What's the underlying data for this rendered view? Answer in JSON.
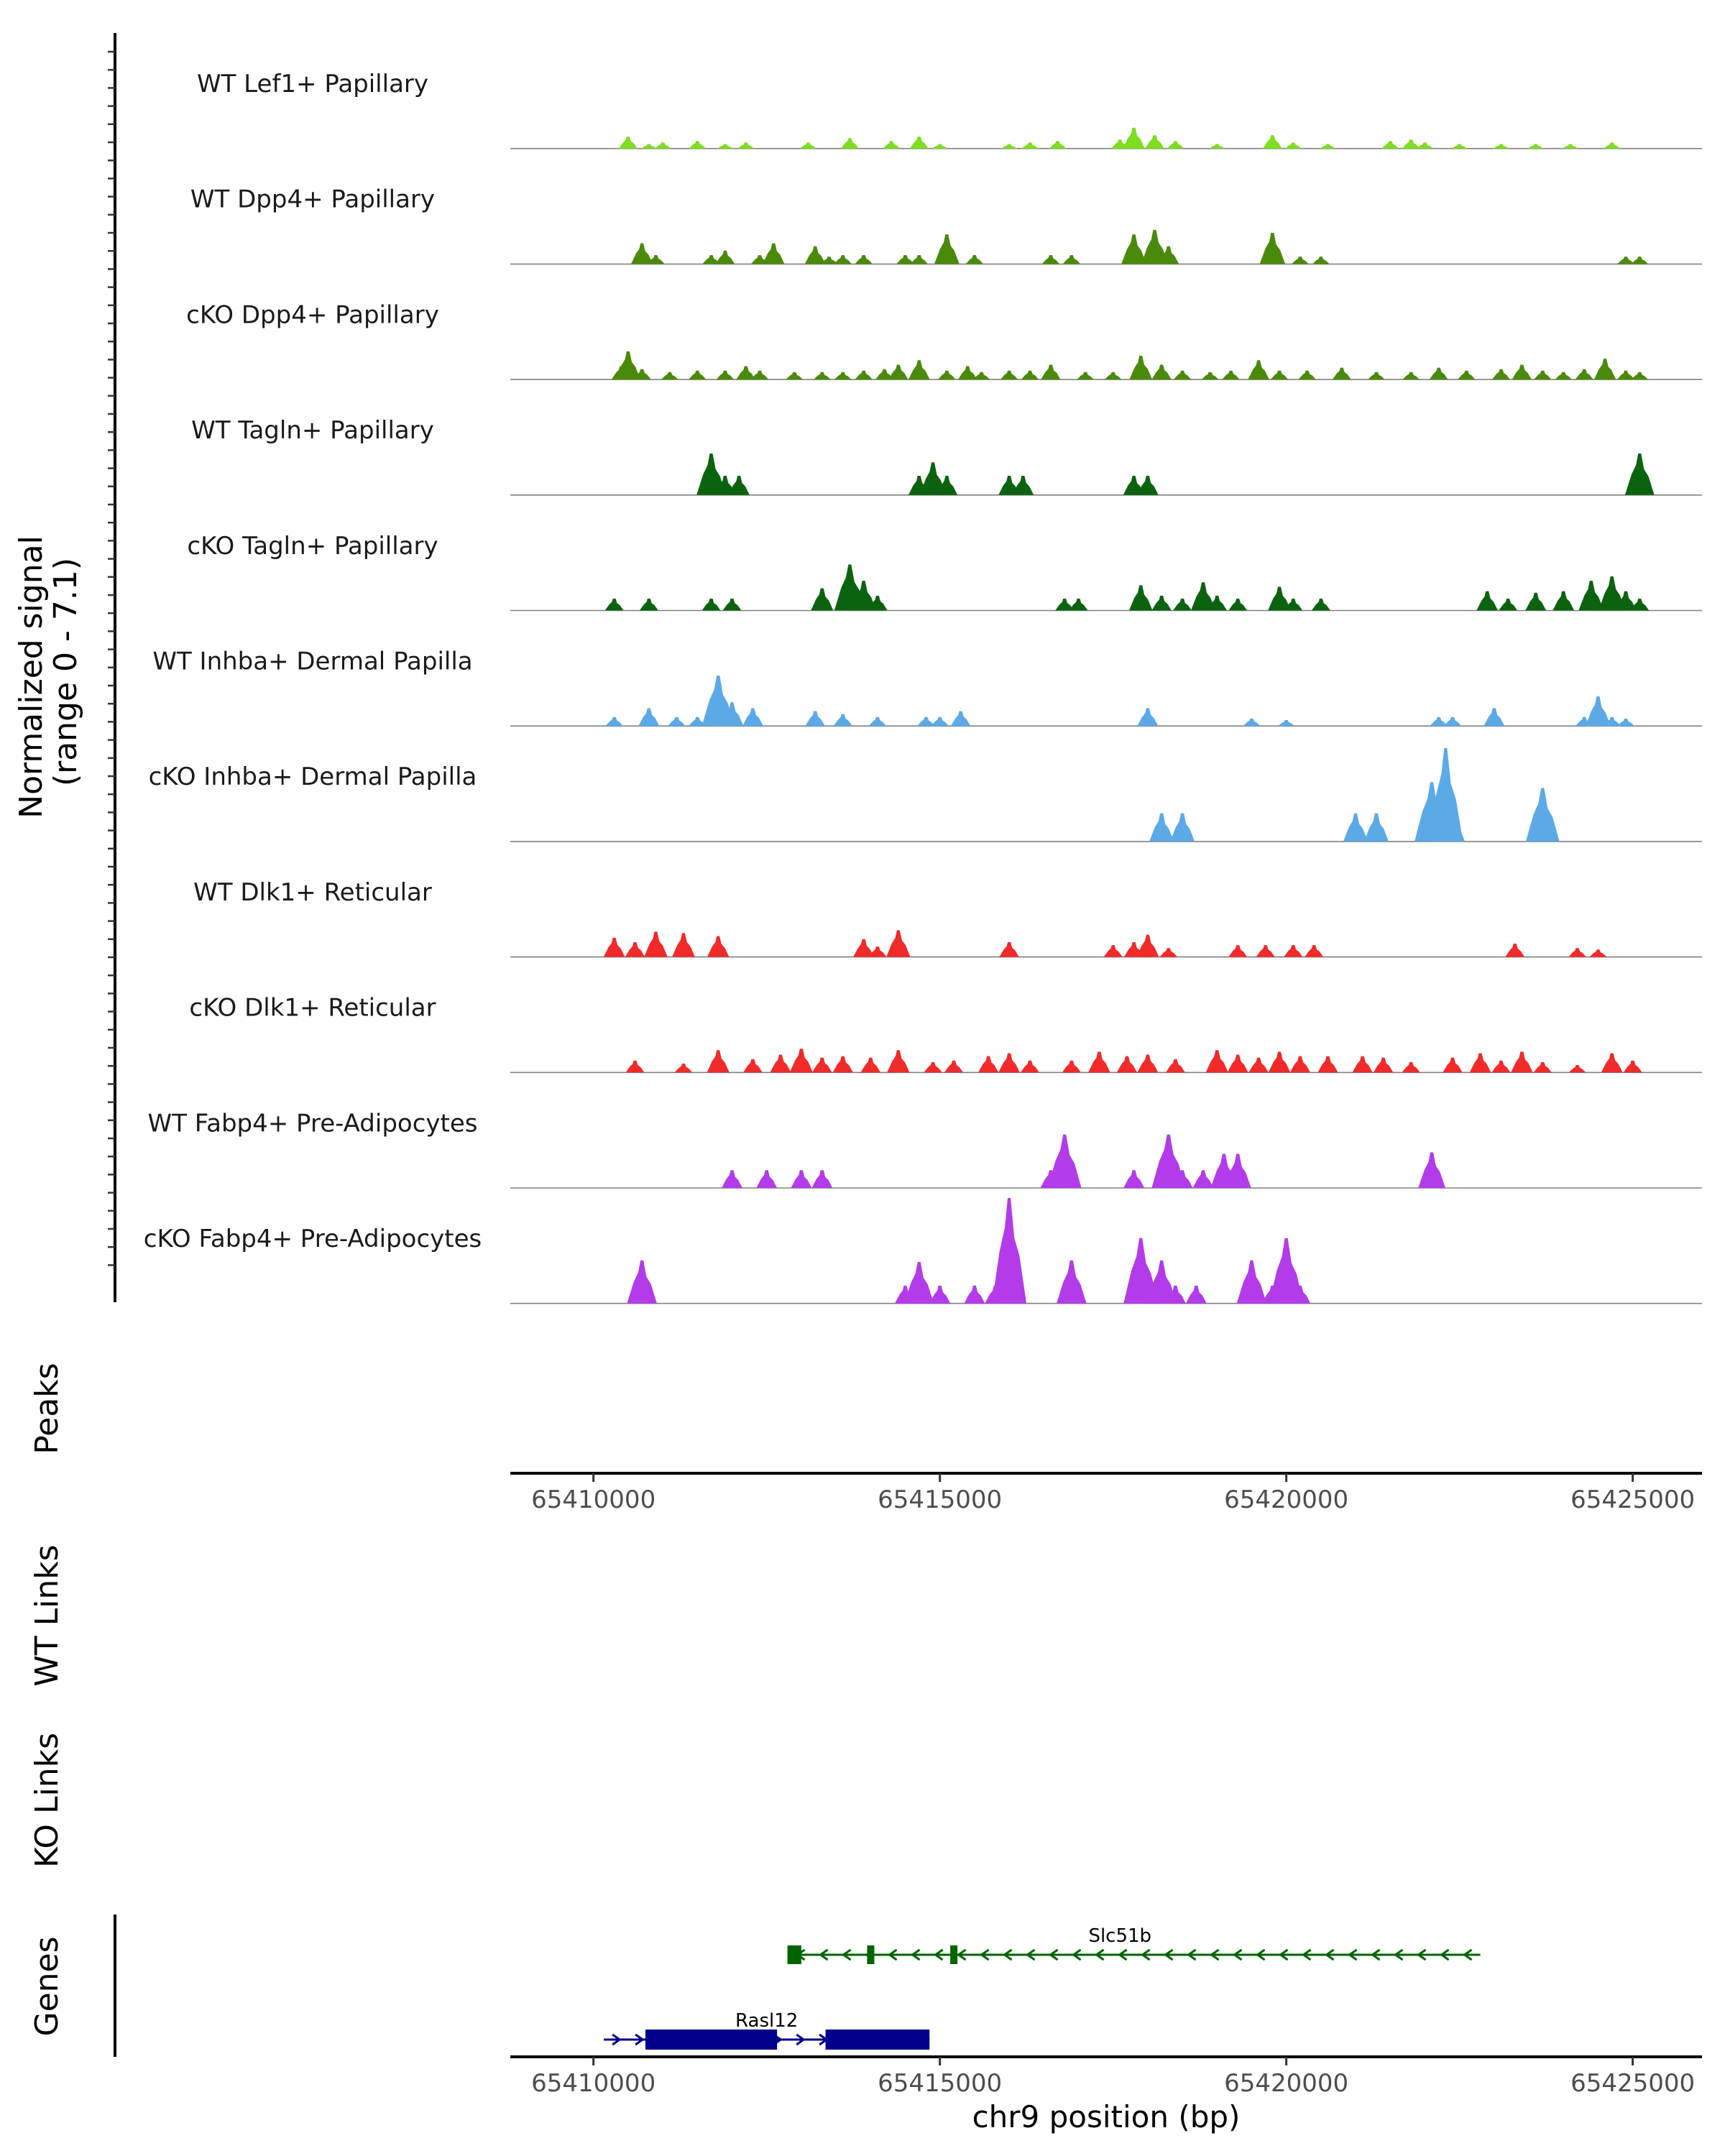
{
  "chart_data": {
    "type": "area",
    "title": "",
    "region": {
      "chrom": "chr9",
      "start": 65408800,
      "end": 65426000
    },
    "ylabel": "Normalized signal\n(range 0 - 7.1)",
    "ylabel_lines": [
      "Normalized signal",
      "(range 0 - 7.1)"
    ],
    "ylim": [
      0,
      7.1
    ],
    "xlabel": "chr9 position (bp)",
    "xticks": [
      65410000,
      65415000,
      65420000,
      65425000
    ],
    "xtick_labels": [
      "65410000",
      "65415000",
      "65420000",
      "65425000"
    ],
    "series": [
      {
        "name": "WT Lef1+ Papillary",
        "color": "#7CDE1E",
        "peaks": [
          [
            65410500,
            0.8
          ],
          [
            65410800,
            0.3
          ],
          [
            65411000,
            0.4
          ],
          [
            65411500,
            0.5
          ],
          [
            65411900,
            0.3
          ],
          [
            65412200,
            0.4
          ],
          [
            65413100,
            0.4
          ],
          [
            65413700,
            0.7
          ],
          [
            65414300,
            0.5
          ],
          [
            65414700,
            0.8
          ],
          [
            65415000,
            0.3
          ],
          [
            65416000,
            0.3
          ],
          [
            65416300,
            0.4
          ],
          [
            65416700,
            0.5
          ],
          [
            65417600,
            0.6
          ],
          [
            65417800,
            1.4
          ],
          [
            65418100,
            0.9
          ],
          [
            65418400,
            0.5
          ],
          [
            65419000,
            0.3
          ],
          [
            65419800,
            0.9
          ],
          [
            65420100,
            0.4
          ],
          [
            65420600,
            0.3
          ],
          [
            65421500,
            0.5
          ],
          [
            65421800,
            0.6
          ],
          [
            65422000,
            0.4
          ],
          [
            65422500,
            0.3
          ],
          [
            65423100,
            0.3
          ],
          [
            65423600,
            0.3
          ],
          [
            65424100,
            0.3
          ],
          [
            65424700,
            0.4
          ]
        ]
      },
      {
        "name": "WT Dpp4+ Papillary",
        "color": "#4A8A0B",
        "peaks": [
          [
            65410700,
            1.4
          ],
          [
            65410900,
            0.6
          ],
          [
            65411700,
            0.6
          ],
          [
            65411900,
            0.9
          ],
          [
            65412400,
            0.6
          ],
          [
            65412600,
            1.4
          ],
          [
            65413200,
            1.2
          ],
          [
            65413400,
            0.5
          ],
          [
            65413600,
            0.6
          ],
          [
            65413900,
            0.6
          ],
          [
            65414500,
            0.6
          ],
          [
            65414700,
            0.6
          ],
          [
            65415100,
            2.0
          ],
          [
            65415500,
            0.6
          ],
          [
            65416600,
            0.6
          ],
          [
            65416900,
            0.6
          ],
          [
            65417800,
            2.0
          ],
          [
            65418100,
            2.3
          ],
          [
            65418300,
            1.2
          ],
          [
            65419800,
            2.1
          ],
          [
            65420200,
            0.5
          ],
          [
            65420500,
            0.5
          ],
          [
            65424900,
            0.5
          ],
          [
            65425100,
            0.5
          ]
        ]
      },
      {
        "name": "cKO Dpp4+ Papillary",
        "color": "#4A8A0B",
        "peaks": [
          [
            65410400,
            0.9
          ],
          [
            65410500,
            1.9
          ],
          [
            65410700,
            0.7
          ],
          [
            65411100,
            0.5
          ],
          [
            65411500,
            0.6
          ],
          [
            65411900,
            0.6
          ],
          [
            65412200,
            0.9
          ],
          [
            65412400,
            0.6
          ],
          [
            65412900,
            0.5
          ],
          [
            65413300,
            0.5
          ],
          [
            65413600,
            0.5
          ],
          [
            65413900,
            0.6
          ],
          [
            65414200,
            0.7
          ],
          [
            65414400,
            1.0
          ],
          [
            65414700,
            1.3
          ],
          [
            65415100,
            0.6
          ],
          [
            65415400,
            0.9
          ],
          [
            65415600,
            0.5
          ],
          [
            65416000,
            0.6
          ],
          [
            65416300,
            0.6
          ],
          [
            65416600,
            1.0
          ],
          [
            65417100,
            0.5
          ],
          [
            65417500,
            0.5
          ],
          [
            65417900,
            1.6
          ],
          [
            65418200,
            1.0
          ],
          [
            65418500,
            0.6
          ],
          [
            65418900,
            0.5
          ],
          [
            65419200,
            0.6
          ],
          [
            65419600,
            1.3
          ],
          [
            65419900,
            0.6
          ],
          [
            65420300,
            0.6
          ],
          [
            65420800,
            0.8
          ],
          [
            65421300,
            0.5
          ],
          [
            65421800,
            0.5
          ],
          [
            65422200,
            0.8
          ],
          [
            65422600,
            0.6
          ],
          [
            65423100,
            0.7
          ],
          [
            65423400,
            1.0
          ],
          [
            65423700,
            0.6
          ],
          [
            65424000,
            0.5
          ],
          [
            65424300,
            0.7
          ],
          [
            65424600,
            1.4
          ],
          [
            65424900,
            0.6
          ],
          [
            65425100,
            0.5
          ]
        ]
      },
      {
        "name": "WT Tagln+ Papillary",
        "color": "#0B6310",
        "peaks": [
          [
            65411700,
            2.8
          ],
          [
            65411900,
            1.3
          ],
          [
            65412100,
            1.3
          ],
          [
            65414700,
            1.3
          ],
          [
            65414900,
            2.2
          ],
          [
            65415100,
            1.3
          ],
          [
            65416000,
            1.3
          ],
          [
            65416200,
            1.3
          ],
          [
            65417800,
            1.3
          ],
          [
            65418000,
            1.3
          ],
          [
            65425100,
            2.8
          ]
        ]
      },
      {
        "name": "cKO Tagln+ Papillary",
        "color": "#0B6310",
        "peaks": [
          [
            65410300,
            0.8
          ],
          [
            65410800,
            0.8
          ],
          [
            65411700,
            0.8
          ],
          [
            65412000,
            0.8
          ],
          [
            65413300,
            1.5
          ],
          [
            65413700,
            3.1
          ],
          [
            65413900,
            2.0
          ],
          [
            65414100,
            1.0
          ],
          [
            65416800,
            0.8
          ],
          [
            65417000,
            0.8
          ],
          [
            65417900,
            1.7
          ],
          [
            65418200,
            1.0
          ],
          [
            65418500,
            0.8
          ],
          [
            65418800,
            1.9
          ],
          [
            65419000,
            1.0
          ],
          [
            65419300,
            0.8
          ],
          [
            65419900,
            1.6
          ],
          [
            65420100,
            0.8
          ],
          [
            65420500,
            0.8
          ],
          [
            65422900,
            1.3
          ],
          [
            65423200,
            0.8
          ],
          [
            65423600,
            1.2
          ],
          [
            65424000,
            1.3
          ],
          [
            65424400,
            2.0
          ],
          [
            65424700,
            2.3
          ],
          [
            65424900,
            1.3
          ],
          [
            65425100,
            0.8
          ]
        ]
      },
      {
        "name": "WT Inhba+ Dermal Papilla",
        "color": "#5CA9E8",
        "peaks": [
          [
            65410300,
            0.6
          ],
          [
            65410800,
            1.2
          ],
          [
            65411200,
            0.6
          ],
          [
            65411500,
            0.6
          ],
          [
            65411800,
            3.4
          ],
          [
            65412000,
            1.6
          ],
          [
            65412300,
            1.2
          ],
          [
            65413200,
            1.0
          ],
          [
            65413600,
            0.8
          ],
          [
            65414100,
            0.6
          ],
          [
            65414800,
            0.6
          ],
          [
            65415000,
            0.6
          ],
          [
            65415300,
            1.0
          ],
          [
            65418000,
            1.2
          ],
          [
            65419500,
            0.5
          ],
          [
            65420000,
            0.4
          ],
          [
            65422200,
            0.6
          ],
          [
            65422400,
            0.6
          ],
          [
            65423000,
            1.2
          ],
          [
            65424300,
            0.6
          ],
          [
            65424500,
            2.0
          ],
          [
            65424700,
            0.6
          ],
          [
            65424900,
            0.5
          ]
        ]
      },
      {
        "name": "cKO Inhba+ Dermal Papilla",
        "color": "#5CA9E8",
        "peaks": [
          [
            65418200,
            1.9
          ],
          [
            65418500,
            1.9
          ],
          [
            65421000,
            1.9
          ],
          [
            65421300,
            1.9
          ],
          [
            65422100,
            4.0
          ],
          [
            65422300,
            6.3
          ],
          [
            65422400,
            1.9
          ],
          [
            65423700,
            3.6
          ]
        ]
      },
      {
        "name": "WT Dlk1+ Reticular",
        "color": "#F12A2A",
        "peaks": [
          [
            65410300,
            1.3
          ],
          [
            65410600,
            1.0
          ],
          [
            65410900,
            1.7
          ],
          [
            65411300,
            1.6
          ],
          [
            65411800,
            1.4
          ],
          [
            65413900,
            1.2
          ],
          [
            65414100,
            0.7
          ],
          [
            65414400,
            1.8
          ],
          [
            65416000,
            1.0
          ],
          [
            65417500,
            0.8
          ],
          [
            65417800,
            1.0
          ],
          [
            65418000,
            1.5
          ],
          [
            65418300,
            0.6
          ],
          [
            65419300,
            0.8
          ],
          [
            65419700,
            0.8
          ],
          [
            65420100,
            0.8
          ],
          [
            65420400,
            0.8
          ],
          [
            65423300,
            0.9
          ],
          [
            65424200,
            0.6
          ],
          [
            65424500,
            0.5
          ]
        ]
      },
      {
        "name": "cKO Dlk1+ Reticular",
        "color": "#F12A2A",
        "peaks": [
          [
            65410600,
            0.8
          ],
          [
            65411300,
            0.6
          ],
          [
            65411800,
            1.5
          ],
          [
            65412300,
            0.9
          ],
          [
            65412700,
            1.2
          ],
          [
            65413000,
            1.6
          ],
          [
            65413300,
            1.0
          ],
          [
            65413600,
            1.1
          ],
          [
            65414000,
            1.0
          ],
          [
            65414400,
            1.5
          ],
          [
            65414900,
            0.7
          ],
          [
            65415200,
            0.8
          ],
          [
            65415700,
            1.1
          ],
          [
            65416000,
            1.3
          ],
          [
            65416300,
            0.8
          ],
          [
            65416900,
            0.8
          ],
          [
            65417300,
            1.4
          ],
          [
            65417700,
            1.1
          ],
          [
            65418000,
            1.2
          ],
          [
            65418400,
            0.9
          ],
          [
            65419000,
            1.5
          ],
          [
            65419300,
            1.2
          ],
          [
            65419600,
            1.0
          ],
          [
            65419900,
            1.4
          ],
          [
            65420200,
            1.1
          ],
          [
            65420600,
            1.1
          ],
          [
            65421100,
            1.1
          ],
          [
            65421400,
            1.0
          ],
          [
            65421800,
            0.7
          ],
          [
            65422400,
            1.0
          ],
          [
            65422800,
            1.3
          ],
          [
            65423100,
            0.8
          ],
          [
            65423400,
            1.4
          ],
          [
            65423700,
            0.7
          ],
          [
            65424200,
            0.5
          ],
          [
            65424700,
            1.3
          ],
          [
            65425000,
            0.8
          ]
        ]
      },
      {
        "name": "WT Fabp4+ Pre-Adipocytes",
        "color": "#B33BEA",
        "peaks": [
          [
            65412000,
            1.2
          ],
          [
            65412500,
            1.2
          ],
          [
            65413000,
            1.2
          ],
          [
            65413300,
            1.2
          ],
          [
            65416600,
            1.2
          ],
          [
            65416800,
            3.6
          ],
          [
            65417800,
            1.2
          ],
          [
            65418300,
            3.6
          ],
          [
            65418500,
            1.2
          ],
          [
            65418800,
            1.2
          ],
          [
            65419100,
            2.3
          ],
          [
            65419300,
            2.3
          ],
          [
            65422100,
            2.4
          ]
        ]
      },
      {
        "name": "cKO Fabp4+ Pre-Adipocytes",
        "color": "#B33BEA",
        "peaks": [
          [
            65410700,
            2.9
          ],
          [
            65414500,
            1.2
          ],
          [
            65414700,
            2.8
          ],
          [
            65415000,
            1.2
          ],
          [
            65415500,
            1.2
          ],
          [
            65415800,
            1.2
          ],
          [
            65416000,
            7.1
          ],
          [
            65416900,
            2.9
          ],
          [
            65417900,
            4.4
          ],
          [
            65418100,
            1.2
          ],
          [
            65418200,
            2.9
          ],
          [
            65418400,
            1.2
          ],
          [
            65418700,
            1.2
          ],
          [
            65419500,
            2.9
          ],
          [
            65419800,
            1.2
          ],
          [
            65420000,
            4.4
          ],
          [
            65420200,
            1.2
          ]
        ]
      }
    ],
    "track_labels": {
      "peaks": "Peaks",
      "wt_links": "WT Links",
      "ko_links": "KO Links",
      "genes": "Genes"
    },
    "genes": [
      {
        "name": "Slc51b",
        "strand": "-",
        "color": "#006400",
        "start": 65412800,
        "end": 65422800,
        "exons": [
          [
            65412800,
            65413000
          ],
          [
            65413950,
            65414050
          ],
          [
            65415150,
            65415250
          ]
        ]
      },
      {
        "name": "Rasl12",
        "strand": "+",
        "color": "#00008B",
        "start": 65410150,
        "end": 65414850,
        "exons": [
          [
            65410750,
            65412650
          ],
          [
            65413350,
            65414850
          ]
        ]
      }
    ]
  }
}
